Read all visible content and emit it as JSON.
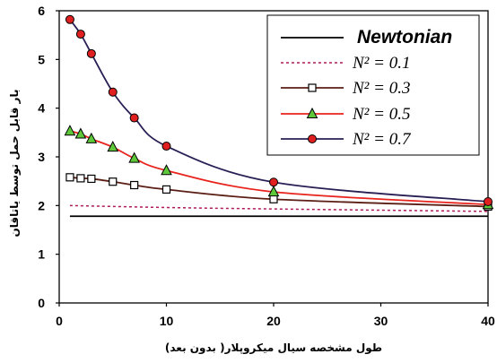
{
  "chart_data": {
    "type": "line",
    "xlabel": "طول مشخصه سیال میکروپلار( بدون بعد)",
    "ylabel": "بار قابل حمل توسط یاتاقان",
    "xlim": [
      0,
      40
    ],
    "ylim": [
      0,
      6
    ],
    "xticks": [
      0,
      10,
      20,
      30,
      40
    ],
    "yticks": [
      0,
      1,
      2,
      3,
      4,
      5,
      6
    ],
    "grid": false,
    "legend_position": "top-right",
    "series": [
      {
        "name": "Newtonian",
        "color": "#000000",
        "line_style": "solid",
        "marker": "none",
        "x": [
          1,
          40
        ],
        "y": [
          1.78,
          1.78
        ]
      },
      {
        "name": "N² = 0.1",
        "color": "#b0185a",
        "line_style": "dotted",
        "marker": "none",
        "x": [
          1,
          10,
          20,
          40
        ],
        "y": [
          2.0,
          1.96,
          1.93,
          1.88
        ]
      },
      {
        "name": "N² = 0.3",
        "color": "#5a1e14",
        "line_style": "solid",
        "marker": "square",
        "x": [
          1,
          2,
          3,
          5,
          7,
          10,
          20,
          40
        ],
        "y": [
          2.58,
          2.56,
          2.55,
          2.49,
          2.42,
          2.33,
          2.13,
          1.98
        ]
      },
      {
        "name": "N² = 0.5",
        "color": "#e8231c",
        "line_style": "solid",
        "marker": "triangle",
        "x": [
          1,
          2,
          3,
          5,
          7,
          10,
          20,
          40
        ],
        "y": [
          3.53,
          3.47,
          3.37,
          3.2,
          2.97,
          2.72,
          2.28,
          2.02
        ]
      },
      {
        "name": "N² = 0.7",
        "color": "#2a1f55",
        "line_style": "solid",
        "marker": "circle",
        "x": [
          1,
          2,
          3,
          5,
          7,
          10,
          20,
          40
        ],
        "y": [
          5.82,
          5.52,
          5.12,
          4.33,
          3.8,
          3.22,
          2.48,
          2.08
        ]
      }
    ]
  }
}
